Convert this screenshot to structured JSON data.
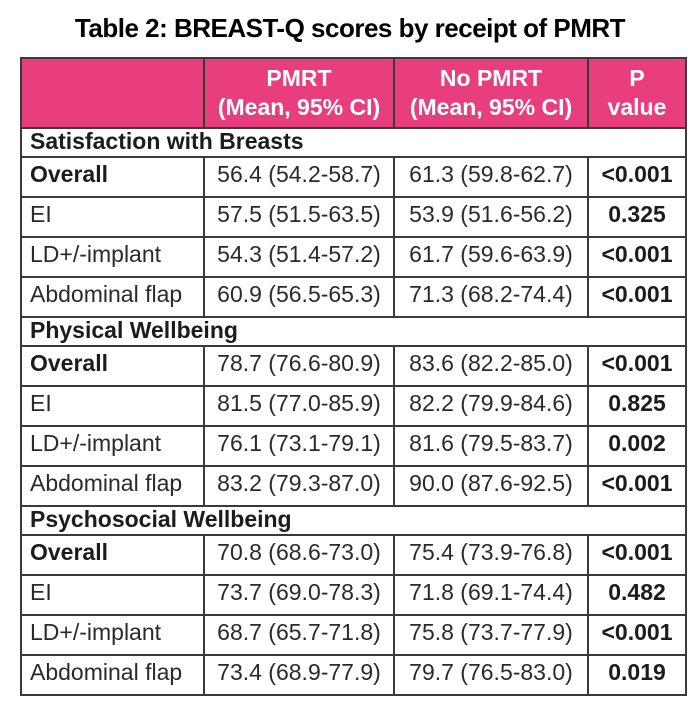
{
  "title": "Table 2: BREAST-Q scores by receipt of PMRT",
  "colors": {
    "header_bg": "#e93e7d",
    "header_text": "#ffffff",
    "border": "#3a3a3a",
    "body_text": "#2a2a2a"
  },
  "table": {
    "columns": [
      {
        "label": ""
      },
      {
        "label": "PMRT\n(Mean, 95% CI)"
      },
      {
        "label": "No PMRT\n(Mean, 95% CI)"
      },
      {
        "label": "P\nvalue"
      }
    ],
    "sections": [
      {
        "name": "Satisfaction with Breasts",
        "rows": [
          {
            "label": "Overall",
            "pmrt": "56.4 (54.2-58.7)",
            "no_pmrt": "61.3 (59.8-62.7)",
            "p": "<0.001"
          },
          {
            "label": "EI",
            "pmrt": "57.5 (51.5-63.5)",
            "no_pmrt": "53.9 (51.6-56.2)",
            "p": "0.325"
          },
          {
            "label": "LD+/-implant",
            "pmrt": "54.3 (51.4-57.2)",
            "no_pmrt": "61.7 (59.6-63.9)",
            "p": "<0.001"
          },
          {
            "label": "Abdominal flap",
            "pmrt": "60.9 (56.5-65.3)",
            "no_pmrt": "71.3 (68.2-74.4)",
            "p": "<0.001"
          }
        ]
      },
      {
        "name": "Physical Wellbeing",
        "rows": [
          {
            "label": "Overall",
            "pmrt": "78.7 (76.6-80.9)",
            "no_pmrt": "83.6 (82.2-85.0)",
            "p": "<0.001"
          },
          {
            "label": "EI",
            "pmrt": "81.5 (77.0-85.9)",
            "no_pmrt": "82.2 (79.9-84.6)",
            "p": "0.825"
          },
          {
            "label": "LD+/-implant",
            "pmrt": "76.1 (73.1-79.1)",
            "no_pmrt": "81.6 (79.5-83.7)",
            "p": "0.002"
          },
          {
            "label": "Abdominal flap",
            "pmrt": "83.2 (79.3-87.0)",
            "no_pmrt": "90.0 (87.6-92.5)",
            "p": "<0.001"
          }
        ]
      },
      {
        "name": "Psychosocial Wellbeing",
        "rows": [
          {
            "label": "Overall",
            "pmrt": "70.8 (68.6-73.0)",
            "no_pmrt": "75.4 (73.9-76.8)",
            "p": "<0.001"
          },
          {
            "label": "EI",
            "pmrt": "73.7 (69.0-78.3)",
            "no_pmrt": "71.8 (69.1-74.4)",
            "p": "0.482"
          },
          {
            "label": "LD+/-implant",
            "pmrt": "68.7 (65.7-71.8)",
            "no_pmrt": "75.8 (73.7-77.9)",
            "p": "<0.001"
          },
          {
            "label": "Abdominal flap",
            "pmrt": "73.4 (68.9-77.9)",
            "no_pmrt": "79.7 (76.5-83.0)",
            "p": "0.019"
          }
        ]
      }
    ]
  }
}
